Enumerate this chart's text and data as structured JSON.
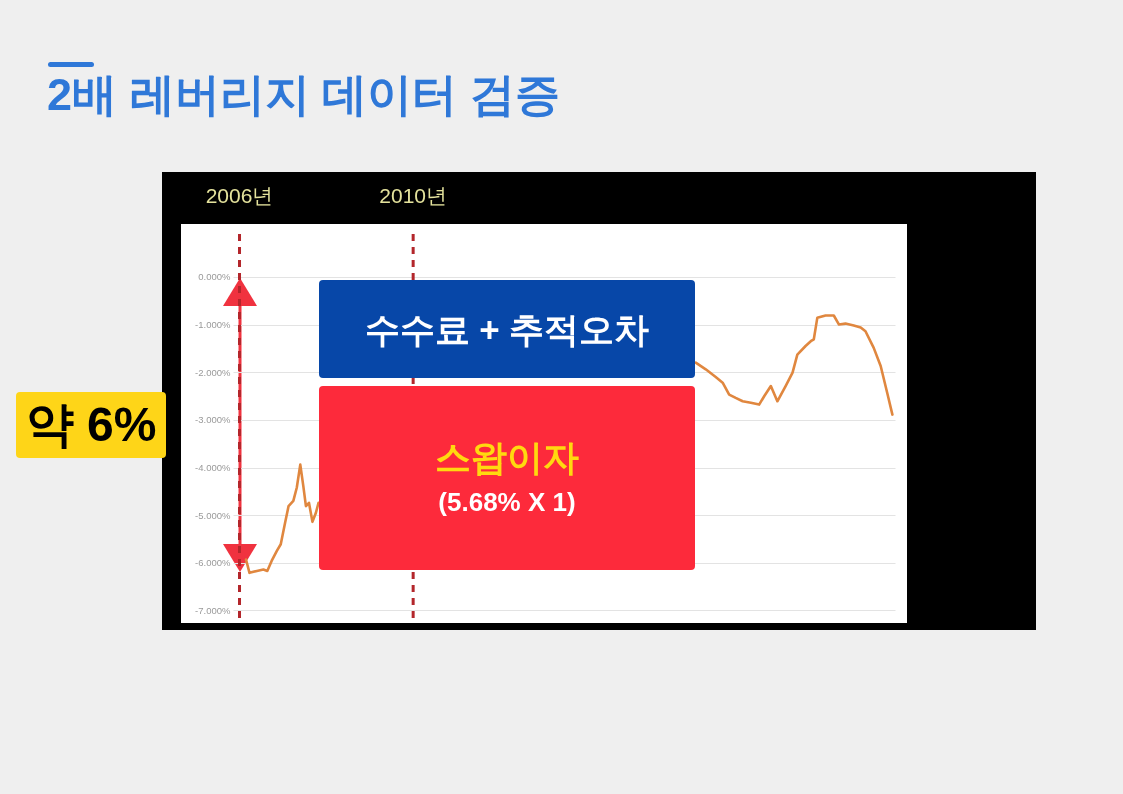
{
  "chart_data": {
    "type": "line",
    "title": "2배 레버리지 데이터 검증",
    "x": [
      2006.15,
      2006.23,
      2006.4,
      2006.55,
      2006.64,
      2006.74,
      2006.86,
      2006.95,
      2007.05,
      2007.13,
      2007.24,
      2007.32,
      2007.4,
      2007.47,
      2007.53,
      2007.6,
      2007.68,
      2007.76,
      2007.82,
      2012,
      2016.51,
      2016.74,
      2016.97,
      2017.13,
      2017.28,
      2017.43,
      2017.59,
      2017.78,
      2017.97,
      2018.09,
      2018.24,
      2018.39,
      2018.58,
      2018.74,
      2018.85,
      2019.04,
      2019.16,
      2019.23,
      2019.31,
      2019.5,
      2019.69,
      2019.81,
      2019.96,
      2020.15,
      2020.31,
      2020.42,
      2020.61,
      2020.77,
      2020.92,
      2021.04
    ],
    "series": [
      {
        "color": "#e0873f",
        "values": [
          -5.93,
          -6.21,
          -6.17,
          -6.14,
          -6.17,
          -5.96,
          -5.75,
          -5.61,
          -5.16,
          -4.81,
          -4.7,
          -4.42,
          -3.94,
          -4.39,
          -4.81,
          -4.74,
          -5.14,
          -4.95,
          -4.74,
          null,
          -1.8,
          -1.94,
          -2.1,
          -2.22,
          -2.47,
          -2.54,
          -2.61,
          -2.64,
          -2.68,
          -2.5,
          -2.29,
          -2.61,
          -2.29,
          -2.01,
          -1.63,
          -1.45,
          -1.35,
          -1.31,
          -0.86,
          -0.81,
          -0.81,
          -1.0,
          -0.98,
          -1.02,
          -1.06,
          -1.14,
          -1.49,
          -1.87,
          -2.43,
          -2.89
        ]
      }
    ],
    "xlim": [
      2005.85,
      2021.1
    ],
    "ylim": [
      -7.2,
      0.9
    ],
    "yticks": [
      {
        "value": 0,
        "label": "0.000%"
      },
      {
        "value": -1,
        "label": "-1.000%"
      },
      {
        "value": -2,
        "label": "-2.000%"
      },
      {
        "value": -3,
        "label": "-3.000%"
      },
      {
        "value": -4,
        "label": "-4.000%"
      },
      {
        "value": -5,
        "label": "-5.000%"
      },
      {
        "value": -6,
        "label": "-6.000%"
      },
      {
        "value": -7,
        "label": "-7.000%"
      }
    ],
    "grid": "y",
    "tick_labels": "y",
    "ref_lines": [
      {
        "axis": "x",
        "value": 2006,
        "label": "2006년",
        "color": "#b3262b",
        "line_style": "dashed"
      },
      {
        "axis": "x",
        "value": 2010,
        "label": "2010년",
        "color": "#b3262b",
        "line_style": "dashed"
      }
    ],
    "annotations": [
      "수수료 + 추적오차",
      "스왑이자",
      "(5.68% X 1)",
      "약 6%"
    ]
  }
}
